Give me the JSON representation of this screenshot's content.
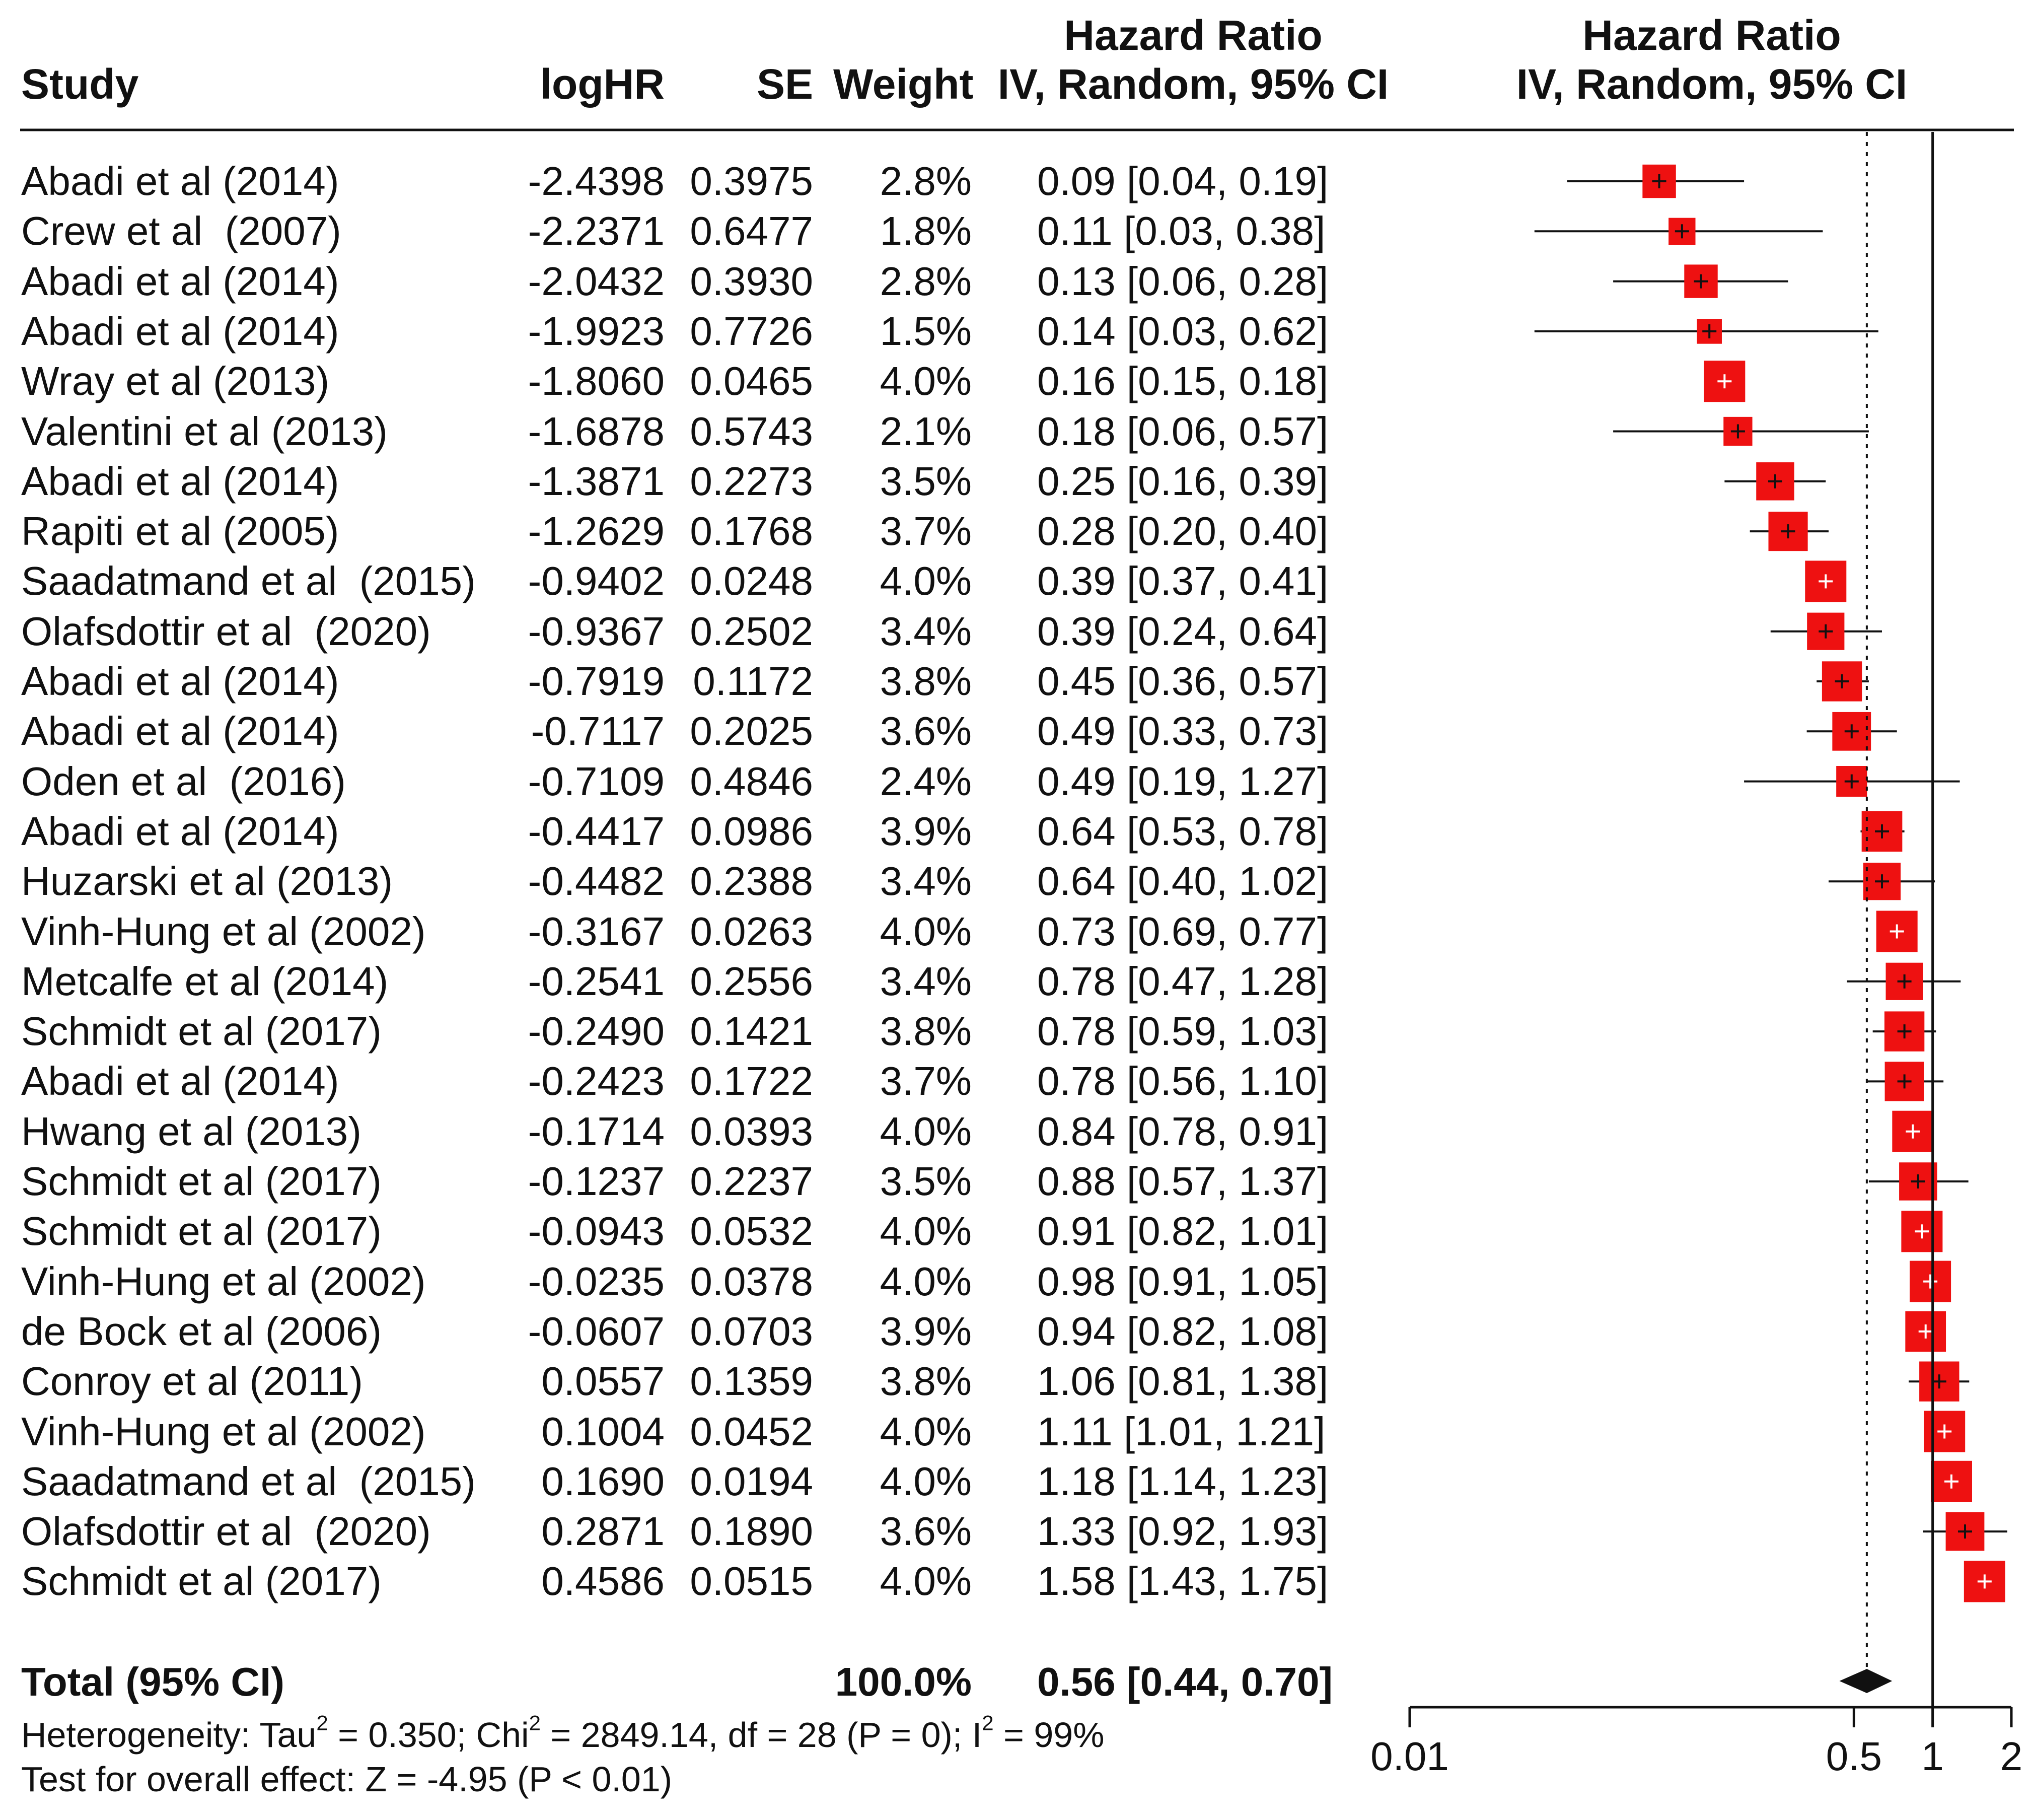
{
  "chart_data": {
    "type": "forest",
    "columns": {
      "study": "Study",
      "loghr": "logHR",
      "se": "SE",
      "weight": "Weight",
      "ci_title": "Hazard Ratio",
      "ci_subtitle": "IV, Random, 95% CI",
      "plot_title": "Hazard Ratio",
      "plot_subtitle": "IV, Random, 95% CI"
    },
    "studies": [
      {
        "name": "Abadi et al (2014)",
        "loghr": "-2.4398",
        "se": "0.3975",
        "weight": "2.8%",
        "ci_text": "0.09 [0.04, 0.19]",
        "hr": 0.09,
        "lo": 0.04,
        "hi": 0.19,
        "w": 2.8
      },
      {
        "name": "Crew et al  (2007)",
        "loghr": "-2.2371",
        "se": "0.6477",
        "weight": "1.8%",
        "ci_text": "0.11 [0.03, 0.38]",
        "hr": 0.11,
        "lo": 0.03,
        "hi": 0.38,
        "w": 1.8
      },
      {
        "name": "Abadi et al (2014)",
        "loghr": "-2.0432",
        "se": "0.3930",
        "weight": "2.8%",
        "ci_text": "0.13 [0.06, 0.28]",
        "hr": 0.13,
        "lo": 0.06,
        "hi": 0.28,
        "w": 2.8
      },
      {
        "name": "Abadi et al (2014)",
        "loghr": "-1.9923",
        "se": "0.7726",
        "weight": "1.5%",
        "ci_text": "0.14 [0.03, 0.62]",
        "hr": 0.14,
        "lo": 0.03,
        "hi": 0.62,
        "w": 1.5
      },
      {
        "name": "Wray et al (2013)",
        "loghr": "-1.8060",
        "se": "0.0465",
        "weight": "4.0%",
        "ci_text": "0.16 [0.15, 0.18]",
        "hr": 0.16,
        "lo": 0.15,
        "hi": 0.18,
        "w": 4.0
      },
      {
        "name": "Valentini et al (2013)",
        "loghr": "-1.6878",
        "se": "0.5743",
        "weight": "2.1%",
        "ci_text": "0.18 [0.06, 0.57]",
        "hr": 0.18,
        "lo": 0.06,
        "hi": 0.57,
        "w": 2.1
      },
      {
        "name": "Abadi et al (2014)",
        "loghr": "-1.3871",
        "se": "0.2273",
        "weight": "3.5%",
        "ci_text": "0.25 [0.16, 0.39]",
        "hr": 0.25,
        "lo": 0.16,
        "hi": 0.39,
        "w": 3.5
      },
      {
        "name": "Rapiti et al (2005)",
        "loghr": "-1.2629",
        "se": "0.1768",
        "weight": "3.7%",
        "ci_text": "0.28 [0.20, 0.40]",
        "hr": 0.28,
        "lo": 0.2,
        "hi": 0.4,
        "w": 3.7
      },
      {
        "name": "Saadatmand et al  (2015)",
        "loghr": "-0.9402",
        "se": "0.0248",
        "weight": "4.0%",
        "ci_text": "0.39 [0.37, 0.41]",
        "hr": 0.39,
        "lo": 0.37,
        "hi": 0.41,
        "w": 4.0
      },
      {
        "name": "Olafsdottir et al  (2020)",
        "loghr": "-0.9367",
        "se": "0.2502",
        "weight": "3.4%",
        "ci_text": "0.39 [0.24, 0.64]",
        "hr": 0.39,
        "lo": 0.24,
        "hi": 0.64,
        "w": 3.4
      },
      {
        "name": "Abadi et al (2014)",
        "loghr": "-0.7919",
        "se": "0.1172",
        "weight": "3.8%",
        "ci_text": "0.45 [0.36, 0.57]",
        "hr": 0.45,
        "lo": 0.36,
        "hi": 0.57,
        "w": 3.8
      },
      {
        "name": "Abadi et al (2014)",
        "loghr": "-0.7117",
        "se": "0.2025",
        "weight": "3.6%",
        "ci_text": "0.49 [0.33, 0.73]",
        "hr": 0.49,
        "lo": 0.33,
        "hi": 0.73,
        "w": 3.6
      },
      {
        "name": "Oden et al  (2016)",
        "loghr": "-0.7109",
        "se": "0.4846",
        "weight": "2.4%",
        "ci_text": "0.49 [0.19, 1.27]",
        "hr": 0.49,
        "lo": 0.19,
        "hi": 1.27,
        "w": 2.4
      },
      {
        "name": "Abadi et al (2014)",
        "loghr": "-0.4417",
        "se": "0.0986",
        "weight": "3.9%",
        "ci_text": "0.64 [0.53, 0.78]",
        "hr": 0.64,
        "lo": 0.53,
        "hi": 0.78,
        "w": 3.9
      },
      {
        "name": "Huzarski et al (2013)",
        "loghr": "-0.4482",
        "se": "0.2388",
        "weight": "3.4%",
        "ci_text": "0.64 [0.40, 1.02]",
        "hr": 0.64,
        "lo": 0.4,
        "hi": 1.02,
        "w": 3.4
      },
      {
        "name": "Vinh-Hung et al (2002)",
        "loghr": "-0.3167",
        "se": "0.0263",
        "weight": "4.0%",
        "ci_text": "0.73 [0.69, 0.77]",
        "hr": 0.73,
        "lo": 0.69,
        "hi": 0.77,
        "w": 4.0
      },
      {
        "name": "Metcalfe et al (2014)",
        "loghr": "-0.2541",
        "se": "0.2556",
        "weight": "3.4%",
        "ci_text": "0.78 [0.47, 1.28]",
        "hr": 0.78,
        "lo": 0.47,
        "hi": 1.28,
        "w": 3.4
      },
      {
        "name": "Schmidt et al (2017)",
        "loghr": "-0.2490",
        "se": "0.1421",
        "weight": "3.8%",
        "ci_text": "0.78 [0.59, 1.03]",
        "hr": 0.78,
        "lo": 0.59,
        "hi": 1.03,
        "w": 3.8
      },
      {
        "name": "Abadi et al (2014)",
        "loghr": "-0.2423",
        "se": "0.1722",
        "weight": "3.7%",
        "ci_text": "0.78 [0.56, 1.10]",
        "hr": 0.78,
        "lo": 0.56,
        "hi": 1.1,
        "w": 3.7
      },
      {
        "name": "Hwang et al (2013)",
        "loghr": "-0.1714",
        "se": "0.0393",
        "weight": "4.0%",
        "ci_text": "0.84 [0.78, 0.91]",
        "hr": 0.84,
        "lo": 0.78,
        "hi": 0.91,
        "w": 4.0
      },
      {
        "name": "Schmidt et al (2017)",
        "loghr": "-0.1237",
        "se": "0.2237",
        "weight": "3.5%",
        "ci_text": "0.88 [0.57, 1.37]",
        "hr": 0.88,
        "lo": 0.57,
        "hi": 1.37,
        "w": 3.5
      },
      {
        "name": "Schmidt et al (2017)",
        "loghr": "-0.0943",
        "se": "0.0532",
        "weight": "4.0%",
        "ci_text": "0.91 [0.82, 1.01]",
        "hr": 0.91,
        "lo": 0.82,
        "hi": 1.01,
        "w": 4.0
      },
      {
        "name": "Vinh-Hung et al (2002)",
        "loghr": "-0.0235",
        "se": "0.0378",
        "weight": "4.0%",
        "ci_text": "0.98 [0.91, 1.05]",
        "hr": 0.98,
        "lo": 0.91,
        "hi": 1.05,
        "w": 4.0
      },
      {
        "name": "de Bock et al (2006)",
        "loghr": "-0.0607",
        "se": "0.0703",
        "weight": "3.9%",
        "ci_text": "0.94 [0.82, 1.08]",
        "hr": 0.94,
        "lo": 0.82,
        "hi": 1.08,
        "w": 3.9
      },
      {
        "name": "Conroy et al (2011)",
        "loghr": "0.0557",
        "se": "0.1359",
        "weight": "3.8%",
        "ci_text": "1.06 [0.81, 1.38]",
        "hr": 1.06,
        "lo": 0.81,
        "hi": 1.38,
        "w": 3.8
      },
      {
        "name": "Vinh-Hung et al (2002)",
        "loghr": "0.1004",
        "se": "0.0452",
        "weight": "4.0%",
        "ci_text": "1.11 [1.01, 1.21]",
        "hr": 1.11,
        "lo": 1.01,
        "hi": 1.21,
        "w": 4.0
      },
      {
        "name": "Saadatmand et al  (2015)",
        "loghr": "0.1690",
        "se": "0.0194",
        "weight": "4.0%",
        "ci_text": "1.18 [1.14, 1.23]",
        "hr": 1.18,
        "lo": 1.14,
        "hi": 1.23,
        "w": 4.0
      },
      {
        "name": "Olafsdottir et al  (2020)",
        "loghr": "0.2871",
        "se": "0.1890",
        "weight": "3.6%",
        "ci_text": "1.33 [0.92, 1.93]",
        "hr": 1.33,
        "lo": 0.92,
        "hi": 1.93,
        "w": 3.6
      },
      {
        "name": "Schmidt et al (2017)",
        "loghr": "0.4586",
        "se": "0.0515",
        "weight": "4.0%",
        "ci_text": "1.58 [1.43, 1.75]",
        "hr": 1.58,
        "lo": 1.43,
        "hi": 1.75,
        "w": 4.0
      }
    ],
    "total": {
      "label": "Total (95% CI)",
      "weight": "100.0%",
      "ci_text": "0.56 [0.44, 0.70]",
      "hr": 0.56,
      "lo": 0.44,
      "hi": 0.7
    },
    "heterogeneity": {
      "prefix": "Heterogeneity: Tau",
      "sup1": "2",
      "mid1": " = 0.350; Chi",
      "sup2": "2",
      "mid2": " = 2849.14, df = 28 (P = 0); I",
      "sup3": "2",
      "suffix": " = 99%"
    },
    "overall_effect": "Test for overall effect: Z = -4.95 (P < 0.01)",
    "x_axis": {
      "scale": "log",
      "range": [
        0.01,
        2
      ],
      "ticks": [
        0.01,
        0.5,
        1,
        2
      ],
      "tick_labels": [
        "0.01",
        "0.5",
        "1",
        "2"
      ],
      "null_line": 1,
      "pooled_dotted_line": 0.56
    },
    "colors": {
      "marker": "#ee1111",
      "line": "#111111"
    }
  }
}
